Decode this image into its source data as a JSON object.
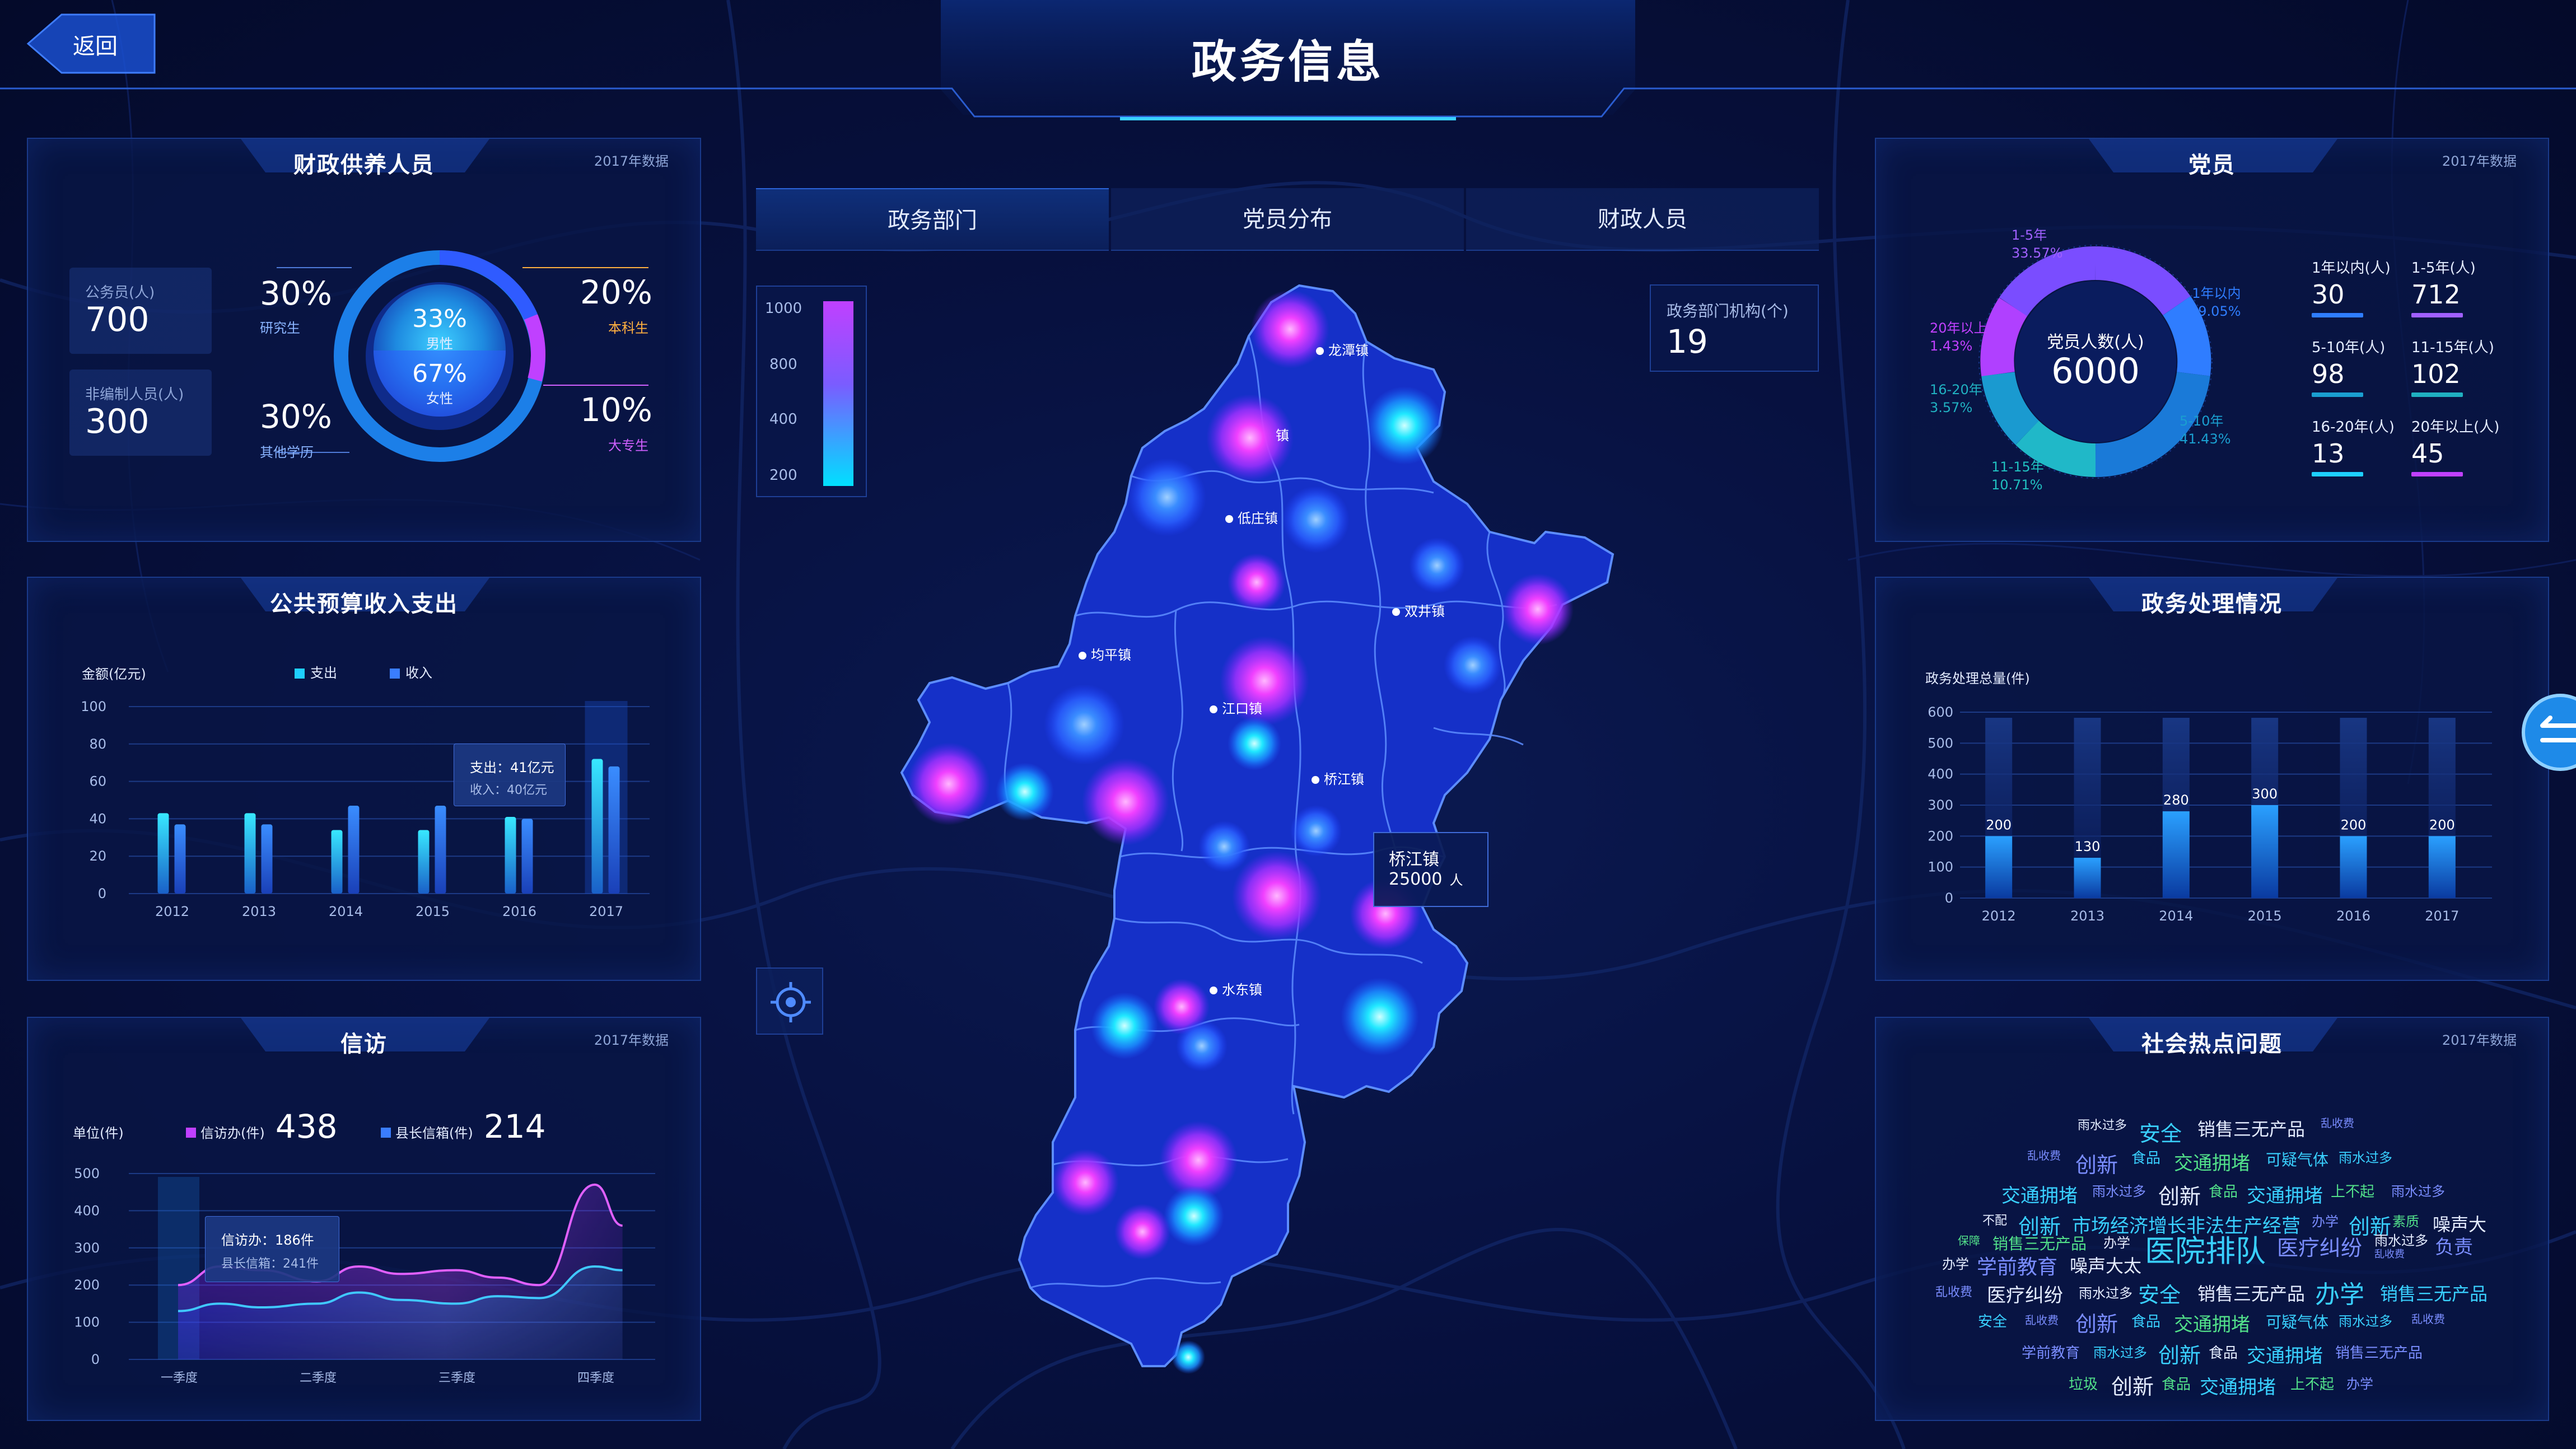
{
  "header": {
    "title": "政务信息",
    "back_label": "返回"
  },
  "tabs": [
    {
      "label": "政务部门"
    },
    {
      "label": "党员分布"
    },
    {
      "label": "财政人员"
    }
  ],
  "finance": {
    "title": "财政供养人员",
    "tag": "2017年数据",
    "stats": [
      {
        "label": "公务员(人)",
        "value": "700"
      },
      {
        "label": "非编制人员(人)",
        "value": "300"
      }
    ],
    "ring": {
      "male_pct": "33%",
      "male_label": "男性",
      "female_pct": "67%",
      "female_label": "女性"
    },
    "education": [
      {
        "pct": "30%",
        "label": "研究生",
        "color": "#8ab4ff"
      },
      {
        "pct": "20%",
        "label": "本科生",
        "color": "#ffb040"
      },
      {
        "pct": "30%",
        "label": "其他学历",
        "color": "#8ab4ff"
      },
      {
        "pct": "10%",
        "label": "大专生",
        "color": "#d060ff"
      }
    ]
  },
  "budget": {
    "title": "公共预算收入支出",
    "ylabel": "金额(亿元)",
    "legend": [
      {
        "name": "支出",
        "color": "#1ecfff"
      },
      {
        "name": "收入",
        "color": "#3a7dff"
      }
    ],
    "tooltip": {
      "line1": "支出：41亿元",
      "line2": "收入：40亿元"
    },
    "chart_data": {
      "type": "bar",
      "categories": [
        "2012",
        "2013",
        "2014",
        "2015",
        "2016",
        "2017"
      ],
      "series": [
        {
          "name": "支出",
          "values": [
            43,
            43,
            34,
            34,
            41,
            72
          ]
        },
        {
          "name": "收入",
          "values": [
            37,
            37,
            47,
            47,
            40,
            68
          ]
        }
      ],
      "yticks": [
        "0",
        "20",
        "40",
        "60",
        "80",
        "100"
      ],
      "ylim": [
        0,
        100
      ]
    }
  },
  "petition": {
    "title": "信访",
    "tag": "2017年数据",
    "unit": "单位(件)",
    "legend": [
      {
        "name": "信访办(件)",
        "value": "438",
        "color": "#c040ff"
      },
      {
        "name": "县长信箱(件)",
        "value": "214",
        "color": "#3a7dff"
      }
    ],
    "tooltip": {
      "line1": "信访办：186件",
      "line2": "县长信箱：241件"
    },
    "chart_data": {
      "type": "area",
      "categories": [
        "一季度",
        "二季度",
        "三季度",
        "四季度"
      ],
      "series": [
        {
          "name": "信访办(件)",
          "x": [
            0,
            0.3,
            0.6,
            1.0,
            1.3,
            1.6,
            2.0,
            2.3,
            2.6,
            3.0,
            3.2
          ],
          "values": [
            200,
            250,
            240,
            210,
            250,
            230,
            240,
            220,
            200,
            470,
            360
          ]
        },
        {
          "name": "县长信箱(件)",
          "x": [
            0,
            0.3,
            0.6,
            1.0,
            1.3,
            1.6,
            2.0,
            2.3,
            2.6,
            3.0,
            3.2
          ],
          "values": [
            130,
            150,
            140,
            150,
            180,
            160,
            150,
            170,
            165,
            250,
            240
          ]
        }
      ],
      "yticks": [
        "0",
        "100",
        "200",
        "300",
        "400",
        "500"
      ],
      "ylim": [
        0,
        500
      ]
    }
  },
  "map": {
    "legend_ticks": [
      "1000",
      "800",
      "400",
      "200"
    ],
    "dept": {
      "label": "政务部门机构(个)",
      "value": "19"
    },
    "towns": [
      "龙潭镇",
      "低庄镇",
      "双井镇",
      "均平镇",
      "江口镇",
      "桥江镇",
      "水东镇"
    ],
    "stub_label": "镇",
    "tooltip": {
      "name": "桥江镇",
      "value": "25000",
      "unit": "人"
    },
    "locate_icon": "crosshair-icon"
  },
  "party": {
    "title": "党员",
    "tag": "2017年数据",
    "center": {
      "label": "党员人数(人)",
      "value": "6000"
    },
    "ring_labels": [
      {
        "name": "1-5年",
        "pct": "33.57%",
        "color": "#a060ff"
      },
      {
        "name": "1年以内",
        "pct": "19.05%",
        "color": "#2f7dff"
      },
      {
        "name": "5-10年",
        "pct": "41.43%",
        "color": "#1a9fd0"
      },
      {
        "name": "11-15年",
        "pct": "10.71%",
        "color": "#20c0c0"
      },
      {
        "name": "16-20年",
        "pct": "3.57%",
        "color": "#20b0c0"
      },
      {
        "name": "20年以上",
        "pct": "1.43%",
        "color": "#c040ff"
      }
    ],
    "items": [
      {
        "label": "1年以内(人)",
        "value": "30",
        "color": "#2f7dff"
      },
      {
        "label": "1-5年(人)",
        "value": "712",
        "color": "#a060ff"
      },
      {
        "label": "5-10年(人)",
        "value": "98",
        "color": "#1a9fd0"
      },
      {
        "label": "11-15年(人)",
        "value": "102",
        "color": "#20b0c0"
      },
      {
        "label": "16-20年(人)",
        "value": "13",
        "color": "#1ecfff"
      },
      {
        "label": "20年以上(人)",
        "value": "45",
        "color": "#c040ff"
      }
    ]
  },
  "affairs": {
    "title": "政务处理情况",
    "ylabel": "政务处理总量(件)",
    "chart_data": {
      "type": "bar",
      "categories": [
        "2012",
        "2013",
        "2014",
        "2015",
        "2016",
        "2017"
      ],
      "values": [
        200,
        130,
        280,
        300,
        200,
        200
      ],
      "yticks": [
        "0",
        "100",
        "200",
        "300",
        "400",
        "500",
        "600"
      ],
      "ylim": [
        0,
        600
      ]
    }
  },
  "hot": {
    "title": "社会热点问题",
    "tag": "2017年数据",
    "words": [
      {
        "t": "雨水过多",
        "x": 3710,
        "y": 1992,
        "s": 22,
        "c": "#e4ecff"
      },
      {
        "t": "安全",
        "x": 3820,
        "y": 1994,
        "s": 38,
        "c": "#39d0ff"
      },
      {
        "t": "销售三无产品",
        "x": 3924,
        "y": 1992,
        "s": 32,
        "c": "#e4ecff"
      },
      {
        "t": "乱收费",
        "x": 4144,
        "y": 1990,
        "s": 20,
        "c": "#7a8dff"
      },
      {
        "t": "乱收费",
        "x": 3620,
        "y": 2048,
        "s": 20,
        "c": "#7a8dff"
      },
      {
        "t": "创新",
        "x": 3706,
        "y": 2050,
        "s": 38,
        "c": "#7a8dff"
      },
      {
        "t": "食品",
        "x": 3806,
        "y": 2048,
        "s": 26,
        "c": "#39d0ff"
      },
      {
        "t": "交通拥堵",
        "x": 3882,
        "y": 2050,
        "s": 34,
        "c": "#52e08a"
      },
      {
        "t": "可疑气体",
        "x": 4046,
        "y": 2050,
        "s": 28,
        "c": "#39d0ff"
      },
      {
        "t": "雨水过多",
        "x": 4176,
        "y": 2048,
        "s": 24,
        "c": "#39d0ff"
      },
      {
        "t": "交通拥堵",
        "x": 3574,
        "y": 2108,
        "s": 34,
        "c": "#39d0ff"
      },
      {
        "t": "雨水过多",
        "x": 3736,
        "y": 2108,
        "s": 24,
        "c": "#7a8dff"
      },
      {
        "t": "创新",
        "x": 3854,
        "y": 2106,
        "s": 38,
        "c": "#e4ecff"
      },
      {
        "t": "食品",
        "x": 3944,
        "y": 2108,
        "s": 26,
        "c": "#52e08a"
      },
      {
        "t": "交通拥堵",
        "x": 4012,
        "y": 2108,
        "s": 34,
        "c": "#39d0ff"
      },
      {
        "t": "上不起",
        "x": 4162,
        "y": 2108,
        "s": 26,
        "c": "#52e08a"
      },
      {
        "t": "雨水过多",
        "x": 4270,
        "y": 2108,
        "s": 24,
        "c": "#7a8dff"
      },
      {
        "t": "不配",
        "x": 3540,
        "y": 2162,
        "s": 22,
        "c": "#e4ecff"
      },
      {
        "t": "创新",
        "x": 3604,
        "y": 2160,
        "s": 38,
        "c": "#39d0ff"
      },
      {
        "t": "市场经济增长非法生产经营",
        "x": 3700,
        "y": 2162,
        "s": 34,
        "c": "#39d0ff"
      },
      {
        "t": "办学",
        "x": 4128,
        "y": 2162,
        "s": 24,
        "c": "#7a8dff"
      },
      {
        "t": "创新",
        "x": 4194,
        "y": 2160,
        "s": 38,
        "c": "#39d0ff"
      },
      {
        "t": "素质",
        "x": 4272,
        "y": 2162,
        "s": 24,
        "c": "#52e08a"
      },
      {
        "t": "噪声大",
        "x": 4344,
        "y": 2162,
        "s": 32,
        "c": "#e4ecff"
      },
      {
        "t": "保障",
        "x": 3496,
        "y": 2200,
        "s": 20,
        "c": "#52e08a"
      },
      {
        "t": "销售三无产品",
        "x": 3558,
        "y": 2200,
        "s": 28,
        "c": "#52e08a"
      },
      {
        "t": "办学",
        "x": 3756,
        "y": 2200,
        "s": 24,
        "c": "#e4ecff"
      },
      {
        "t": "医院排队",
        "x": 3830,
        "y": 2190,
        "s": 54,
        "c": "#39d0ff"
      },
      {
        "t": "医疗纠纷",
        "x": 4066,
        "y": 2198,
        "s": 38,
        "c": "#7a8dff"
      },
      {
        "t": "雨水过多",
        "x": 4240,
        "y": 2196,
        "s": 24,
        "c": "#e4ecff"
      },
      {
        "t": "负责",
        "x": 4348,
        "y": 2200,
        "s": 34,
        "c": "#7a8dff"
      },
      {
        "t": "乱收费",
        "x": 4240,
        "y": 2226,
        "s": 18,
        "c": "#7a8dff"
      },
      {
        "t": "办学",
        "x": 3468,
        "y": 2238,
        "s": 24,
        "c": "#e4ecff"
      },
      {
        "t": "学前教育",
        "x": 3530,
        "y": 2234,
        "s": 36,
        "c": "#7a8dff"
      },
      {
        "t": "噪声大太",
        "x": 3696,
        "y": 2236,
        "s": 32,
        "c": "#e4ecff"
      },
      {
        "t": "乱收费",
        "x": 3456,
        "y": 2290,
        "s": 22,
        "c": "#7a8dff"
      },
      {
        "t": "医疗纠纷",
        "x": 3548,
        "y": 2286,
        "s": 34,
        "c": "#e4ecff"
      },
      {
        "t": "雨水过多",
        "x": 3712,
        "y": 2290,
        "s": 24,
        "c": "#e4ecff"
      },
      {
        "t": "安全",
        "x": 3818,
        "y": 2282,
        "s": 38,
        "c": "#39d0ff"
      },
      {
        "t": "销售三无产品",
        "x": 3924,
        "y": 2286,
        "s": 32,
        "c": "#e4ecff"
      },
      {
        "t": "办学",
        "x": 4134,
        "y": 2276,
        "s": 44,
        "c": "#39d0ff"
      },
      {
        "t": "销售三无产品",
        "x": 4250,
        "y": 2286,
        "s": 32,
        "c": "#39d0ff"
      },
      {
        "t": "安全",
        "x": 3532,
        "y": 2340,
        "s": 26,
        "c": "#39d0ff"
      },
      {
        "t": "乱收费",
        "x": 3616,
        "y": 2342,
        "s": 20,
        "c": "#7a8dff"
      },
      {
        "t": "创新",
        "x": 3706,
        "y": 2334,
        "s": 38,
        "c": "#7a8dff"
      },
      {
        "t": "食品",
        "x": 3806,
        "y": 2340,
        "s": 26,
        "c": "#39d0ff"
      },
      {
        "t": "交通拥堵",
        "x": 3882,
        "y": 2338,
        "s": 34,
        "c": "#52e08a"
      },
      {
        "t": "可疑气体",
        "x": 4046,
        "y": 2340,
        "s": 28,
        "c": "#39d0ff"
      },
      {
        "t": "雨水过多",
        "x": 4176,
        "y": 2340,
        "s": 24,
        "c": "#39d0ff"
      },
      {
        "t": "乱收费",
        "x": 4306,
        "y": 2340,
        "s": 20,
        "c": "#7a8dff"
      },
      {
        "t": "学前教育",
        "x": 3610,
        "y": 2396,
        "s": 26,
        "c": "#7a8dff"
      },
      {
        "t": "雨水过多",
        "x": 3738,
        "y": 2396,
        "s": 24,
        "c": "#39d0ff"
      },
      {
        "t": "创新",
        "x": 3854,
        "y": 2390,
        "s": 38,
        "c": "#39d0ff"
      },
      {
        "t": "食品",
        "x": 3944,
        "y": 2396,
        "s": 26,
        "c": "#e4ecff"
      },
      {
        "t": "交通拥堵",
        "x": 4012,
        "y": 2394,
        "s": 34,
        "c": "#39d0ff"
      },
      {
        "t": "销售三无产品",
        "x": 4170,
        "y": 2396,
        "s": 26,
        "c": "#7a8dff"
      },
      {
        "t": "垃圾",
        "x": 3694,
        "y": 2452,
        "s": 26,
        "c": "#52e08a"
      },
      {
        "t": "创新",
        "x": 3770,
        "y": 2446,
        "s": 38,
        "c": "#e4ecff"
      },
      {
        "t": "食品",
        "x": 3860,
        "y": 2452,
        "s": 26,
        "c": "#52e08a"
      },
      {
        "t": "交通拥堵",
        "x": 3928,
        "y": 2450,
        "s": 34,
        "c": "#39d0ff"
      },
      {
        "t": "上不起",
        "x": 4090,
        "y": 2452,
        "s": 26,
        "c": "#52e08a"
      },
      {
        "t": "办学",
        "x": 4190,
        "y": 2452,
        "s": 24,
        "c": "#7a8dff"
      }
    ]
  }
}
